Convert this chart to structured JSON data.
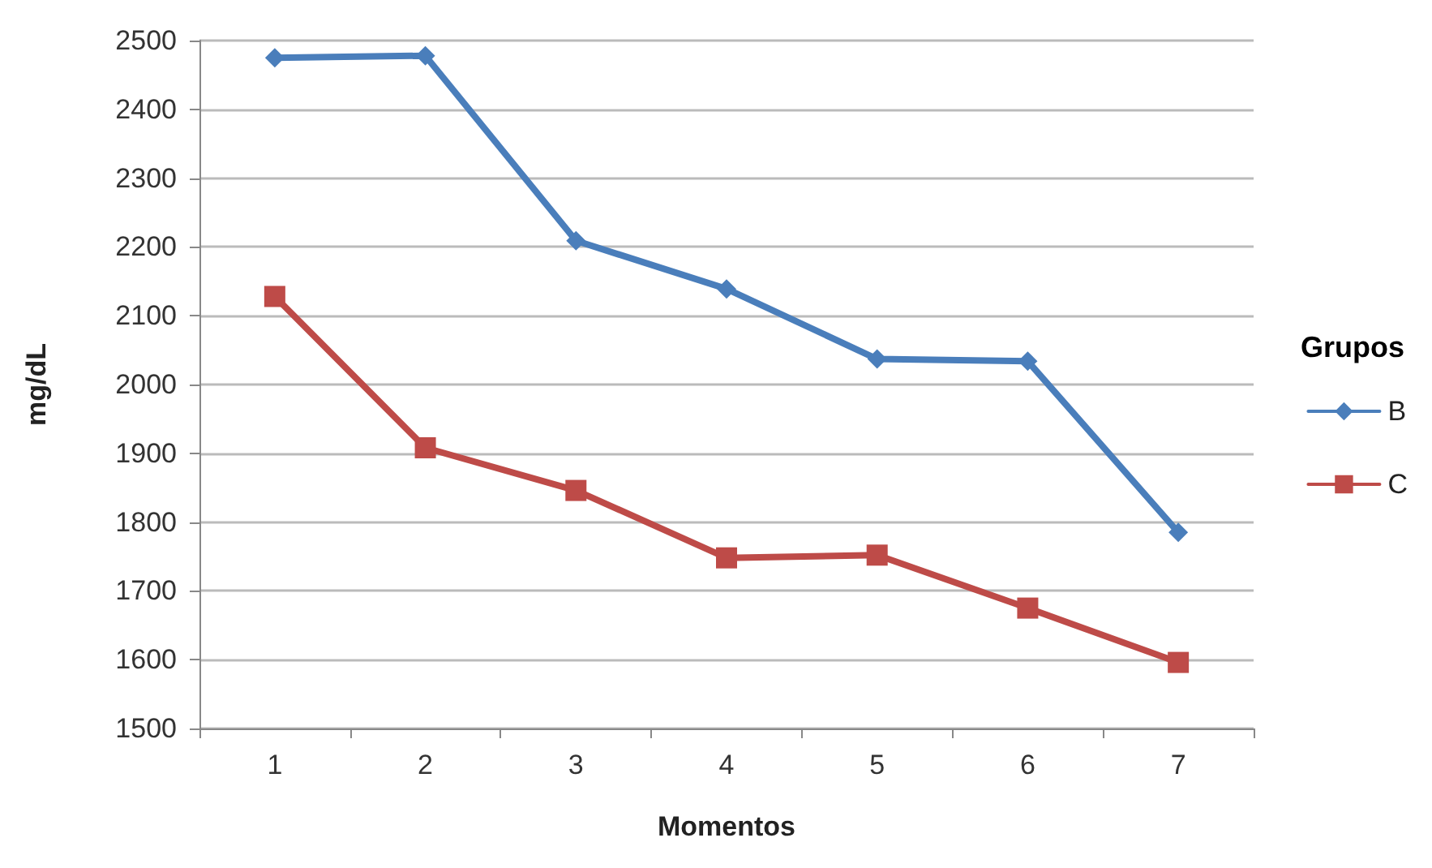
{
  "chart_data": {
    "type": "line",
    "xlabel": "Momentos",
    "ylabel": "mg/dL",
    "legend_title": "Grupos",
    "categories": [
      "1",
      "2",
      "3",
      "4",
      "5",
      "6",
      "7"
    ],
    "series": [
      {
        "name": "B",
        "color": "#4a7ebb",
        "marker": "diamond",
        "values": [
          2475,
          2478,
          2209,
          2139,
          2037,
          2034,
          1785
        ]
      },
      {
        "name": "C",
        "color": "#be4b48",
        "marker": "square",
        "values": [
          2128,
          1908,
          1846,
          1748,
          1752,
          1675,
          1596
        ]
      }
    ],
    "ylim": [
      1500,
      2500
    ],
    "yticks": [
      1500,
      1600,
      1700,
      1800,
      1900,
      2000,
      2100,
      2200,
      2300,
      2400,
      2500
    ],
    "grid": "y",
    "legend": "right"
  }
}
